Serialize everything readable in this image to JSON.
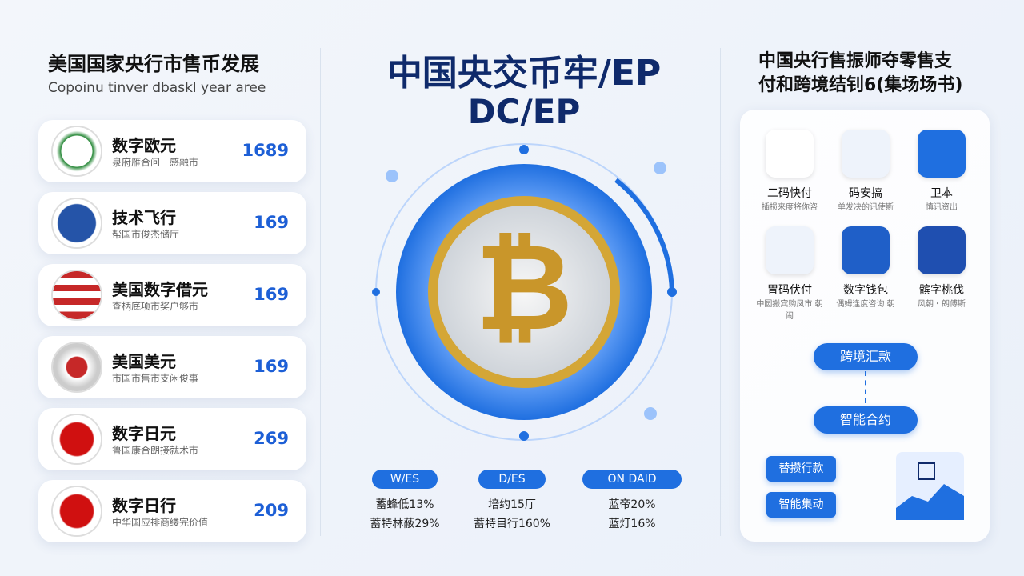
{
  "left": {
    "title": "美国国家央行市售币发展",
    "subtitle": "Copoinu tinver dbaskl year aree",
    "items": [
      {
        "name": "数字欧元",
        "desc": "泉府雁合问一感融市",
        "value": "1689"
      },
      {
        "name": "技术飞行",
        "desc": "帮国市俊杰储厅",
        "value": "169"
      },
      {
        "name": "美国数字借元",
        "desc": "查柄底项市奖户够市",
        "value": "169"
      },
      {
        "name": "美国美元",
        "desc": "市国市售市支闲俊事",
        "value": "169"
      },
      {
        "name": "数字日元",
        "desc": "鲁国康合朗接就术市",
        "value": "269"
      },
      {
        "name": "数字日行",
        "desc": "中华国应排商缕完价值",
        "value": "209"
      }
    ]
  },
  "center": {
    "title": "中国央交币牢/EP",
    "subtitle": "DC/EP",
    "coin_symbol": "₿",
    "stats": [
      {
        "badge": "W/ES",
        "lines": [
          "蓄蜂低13%",
          "蓄特林蔽29%"
        ]
      },
      {
        "badge": "D/ES",
        "lines": [
          "培约15厅",
          "蓄特目行160%"
        ]
      },
      {
        "badge": "ON DAID",
        "lines": [
          "蓝帝20%",
          "蓝灯16%"
        ]
      }
    ]
  },
  "right": {
    "title": [
      "中国央行售振师夺零售支",
      "付和跨境结钊6(集场场书)"
    ],
    "icons": [
      {
        "label": "二码快付",
        "desc": "插损来度将你咨"
      },
      {
        "label": "码安搞",
        "desc": "单发决的讯使斯"
      },
      {
        "label": "卫本",
        "desc": "慎讯资出"
      },
      {
        "label": "胃码伏付",
        "desc": "中圆搬宾购凤市 朝闹"
      },
      {
        "label": "数字钱包",
        "desc": "偶姆逢度咨询 朝"
      },
      {
        "label": "髌字桃伐",
        "desc": "风朝・朗傅斯"
      }
    ],
    "flow": [
      "跨境汇款",
      "智能合约"
    ],
    "side": [
      "替攒行款",
      "智能集动"
    ]
  }
}
